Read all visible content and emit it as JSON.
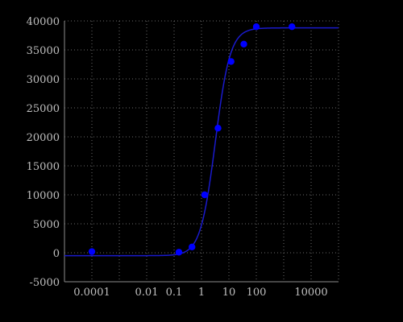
{
  "chart_data": {
    "type": "scatter",
    "title": "",
    "xlabel": "",
    "ylabel": "",
    "x_scale": "log",
    "xlim": [
      1e-05,
      100000
    ],
    "ylim": [
      -5000,
      40000
    ],
    "grid": true,
    "x_ticks": [
      "0.0001",
      "0.01",
      "0.1",
      "1",
      "10",
      "100",
      "10000"
    ],
    "x_tick_values": [
      0.0001,
      0.01,
      0.1,
      1,
      10,
      100,
      10000
    ],
    "y_ticks": [
      "-5000",
      "0",
      "5000",
      "10000",
      "15000",
      "20000",
      "25000",
      "30000",
      "35000",
      "40000"
    ],
    "y_tick_values": [
      -5000,
      0,
      5000,
      10000,
      15000,
      20000,
      25000,
      30000,
      35000,
      40000
    ],
    "points": {
      "x": [
        0.0001,
        0.15,
        0.45,
        1.3,
        4,
        12,
        35,
        100,
        2000
      ],
      "y": [
        200,
        100,
        1000,
        10000,
        21500,
        33000,
        36000,
        39000,
        39000
      ]
    },
    "fit_curve": {
      "type": "4PL",
      "bottom": -500,
      "top": 38800,
      "ec50": 3.2,
      "hill": 1.6
    },
    "colors": {
      "background": "#000000",
      "points": "#0000ff",
      "curve": "#1a1acc",
      "grid": "#6a6a6a",
      "tick_text": "#bfbfbf"
    }
  }
}
